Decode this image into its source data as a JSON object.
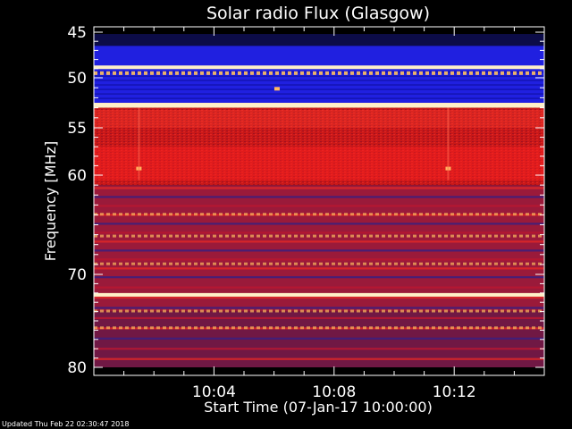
{
  "chart_data": {
    "type": "heatmap",
    "title": "Solar radio Flux (Glasgow)",
    "xlabel": "Start Time (07-Jan-17 10:00:00)",
    "ylabel": "Frequency [MHz]",
    "x_ticks": [
      "10:04",
      "10:08",
      "10:12"
    ],
    "x_tick_minutes": [
      4,
      8,
      12
    ],
    "x_range_minutes": [
      0,
      15
    ],
    "y_ticks": [
      45,
      50,
      55,
      60,
      70,
      80
    ],
    "y_range_mhz": [
      45,
      80
    ],
    "y_scale": "log",
    "grid": false,
    "colormap": [
      "#0b0b3a",
      "#1a1ad0",
      "#3030ff",
      "#7a1040",
      "#c01010",
      "#ff2020",
      "#ff7a40",
      "#ffd080"
    ],
    "bands": [
      {
        "from": 45.2,
        "to": 46.5,
        "level": "blue-dark"
      },
      {
        "from": 46.5,
        "to": 48.7,
        "level": "blue"
      },
      {
        "from": 48.7,
        "to": 49.0,
        "level": "white"
      },
      {
        "from": 49.0,
        "to": 52.5,
        "level": "blue"
      },
      {
        "from": 52.5,
        "to": 53.0,
        "level": "white"
      },
      {
        "from": 53.0,
        "to": 61.0,
        "level": "red"
      },
      {
        "from": 61.0,
        "to": 74.0,
        "level": "red-mixed"
      },
      {
        "from": 74.0,
        "to": 80.0,
        "level": "red-dark"
      }
    ],
    "bright_lines_mhz": [
      48.85,
      52.75,
      72.2
    ],
    "hot_spots": [
      {
        "minute": 1.5,
        "mhz": 59.3
      },
      {
        "minute": 11.8,
        "mhz": 59.3
      },
      {
        "minute": 6.1,
        "mhz": 51.1
      }
    ]
  },
  "footer": {
    "updated": "Updated Thu Feb 22 02:30:47 2018"
  }
}
